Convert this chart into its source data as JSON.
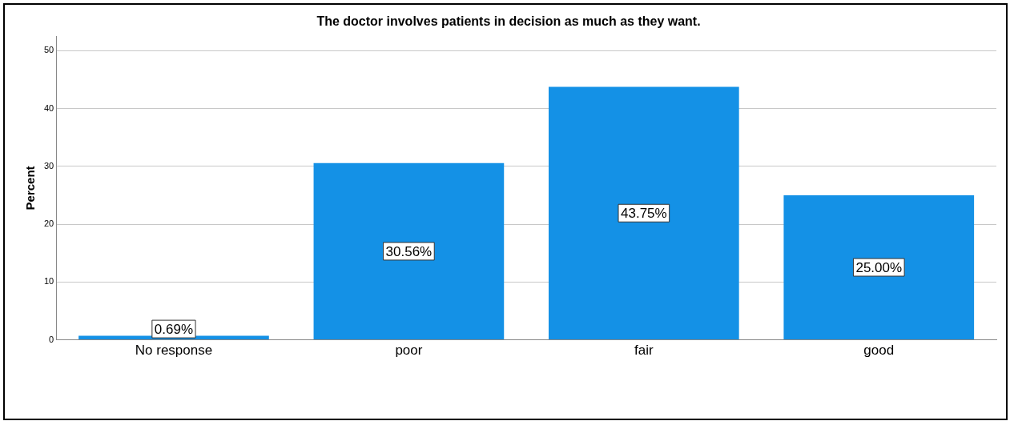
{
  "chart_data": {
    "type": "bar",
    "title": "The doctor involves patients in decision as much as they want.",
    "ylabel": "Percent",
    "categories": [
      "No response",
      "poor",
      "fair",
      "good"
    ],
    "values": [
      0.69,
      30.56,
      43.75,
      25.0
    ],
    "value_labels": [
      "0.69%",
      "30.56%",
      "43.75%",
      "25.00%"
    ],
    "color": "#1491e6",
    "ylim": [
      0,
      52.5
    ],
    "yticks": [
      0,
      10,
      20,
      30,
      40,
      50
    ],
    "grid": "y",
    "legend": false
  }
}
